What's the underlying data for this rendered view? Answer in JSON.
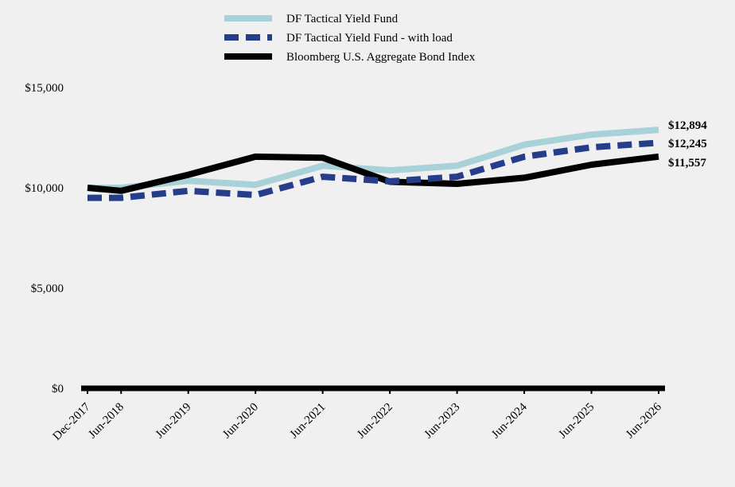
{
  "chart_data": {
    "type": "line",
    "title": "",
    "xlabel": "",
    "ylabel": "",
    "categories": [
      "Dec-2017",
      "Jun-2018",
      "Jun-2019",
      "Jun-2020",
      "Jun-2021",
      "Jun-2022",
      "Jun-2023",
      "Jun-2024",
      "Jun-2025",
      "Jun-2026"
    ],
    "x": [
      2017.917,
      2018.417,
      2019.417,
      2020.417,
      2021.417,
      2022.417,
      2023.417,
      2024.417,
      2025.417,
      2026.417
    ],
    "ylim": [
      0,
      15000
    ],
    "yticks": [
      0,
      5000,
      10000,
      15000
    ],
    "ytick_labels": [
      "$0",
      "$5,000",
      "$10,000",
      "$15,000"
    ],
    "grid": false,
    "legend_position": "top-center",
    "series": [
      {
        "name": "DF Tactical Yield Fund",
        "color": "#a8d1d8",
        "style": "solid",
        "values": [
          10000,
          10000,
          10350,
          10150,
          11100,
          10870,
          11100,
          12150,
          12650,
          12894
        ],
        "end_label": "$12,894"
      },
      {
        "name": "DF Tactical Yield Fund - with load",
        "color": "#253d8a",
        "style": "dashed",
        "values": [
          9500,
          9500,
          9850,
          9640,
          10550,
          10320,
          10550,
          11550,
          12020,
          12245
        ],
        "end_label": "$12,245"
      },
      {
        "name": "Bloomberg U.S. Aggregate Bond Index",
        "color": "#000000",
        "style": "solid",
        "values": [
          10000,
          9850,
          10650,
          11550,
          11500,
          10300,
          10200,
          10500,
          11150,
          11557
        ],
        "end_label": "$11,557"
      }
    ]
  }
}
